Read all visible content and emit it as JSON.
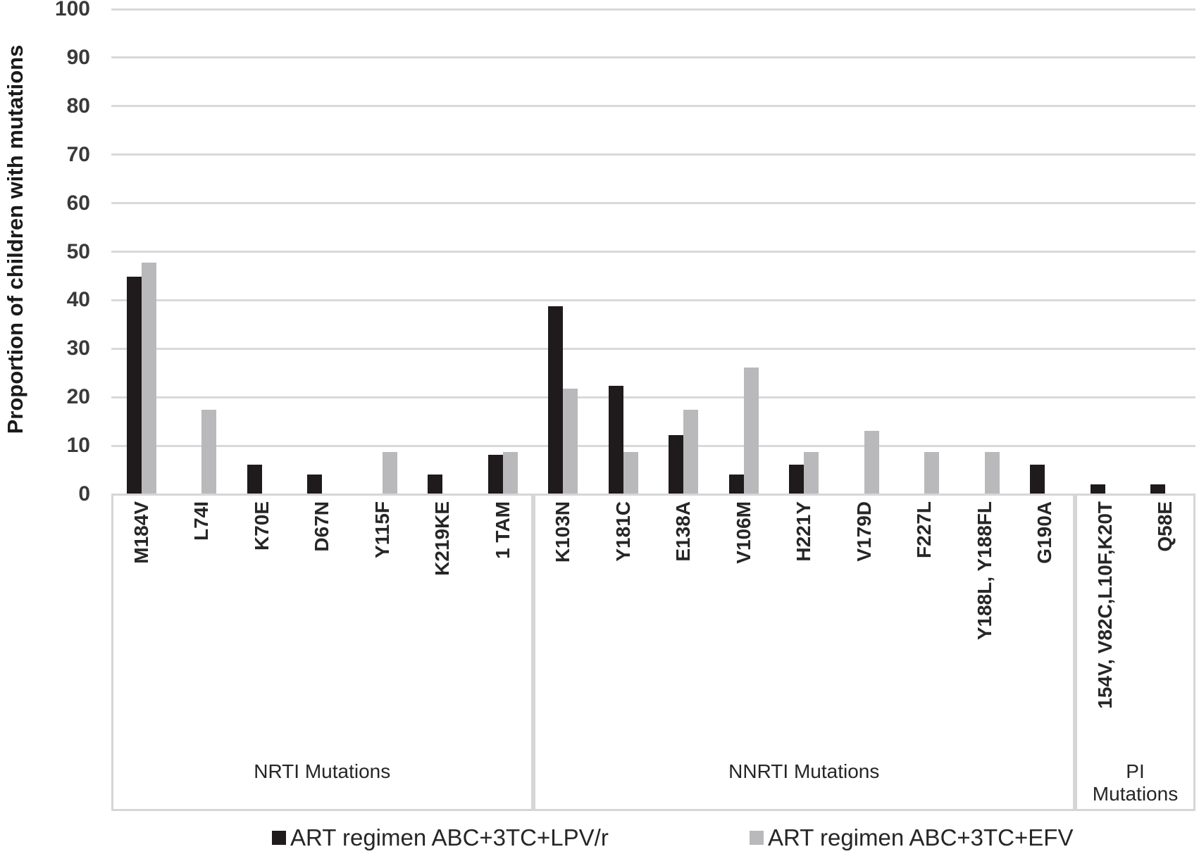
{
  "figure": {
    "background": "#ffffff"
  },
  "chart_data": {
    "type": "bar",
    "title": "",
    "ylabel": "Proportion of children with mutations",
    "ylim": [
      0,
      100
    ],
    "ytick_step": 10,
    "grid": "horizontal",
    "legend_position": "bottom",
    "grid_color": "#d9d9d9",
    "box_color": "#d6d6d6",
    "groups": [
      {
        "label": "NRTI Mutations",
        "categories": [
          "M184V",
          "L74I",
          "K70E",
          "D67N",
          "Y115F",
          "K219KE",
          "1 TAM"
        ]
      },
      {
        "label": "NNRTI Mutations",
        "categories": [
          "K103N",
          "Y181C",
          "E138A",
          "V106M",
          "H221Y",
          "V179D",
          "F227L",
          "Y188L, Y188FL",
          "G190A"
        ]
      },
      {
        "label": "PI Mutations",
        "categories": [
          "154V, V82C,L10F,K20T",
          "Q58E"
        ]
      }
    ],
    "series": [
      {
        "name": "ART regimen ABC+3TC+LPV/r",
        "color": "#1f1a1b",
        "values": [
          44.9,
          0,
          6.1,
          4.1,
          0,
          4.1,
          8.2,
          38.8,
          22.4,
          12.2,
          4.1,
          6.1,
          0,
          0,
          0,
          6.1,
          2,
          2
        ]
      },
      {
        "name": "ART regimen ABC+3TC+EFV",
        "color": "#b9b9bb",
        "values": [
          47.8,
          17.4,
          0,
          0,
          8.7,
          0,
          8.7,
          21.7,
          8.7,
          17.4,
          26.1,
          8.7,
          13,
          8.7,
          8.7,
          0,
          0,
          0
        ]
      }
    ]
  }
}
